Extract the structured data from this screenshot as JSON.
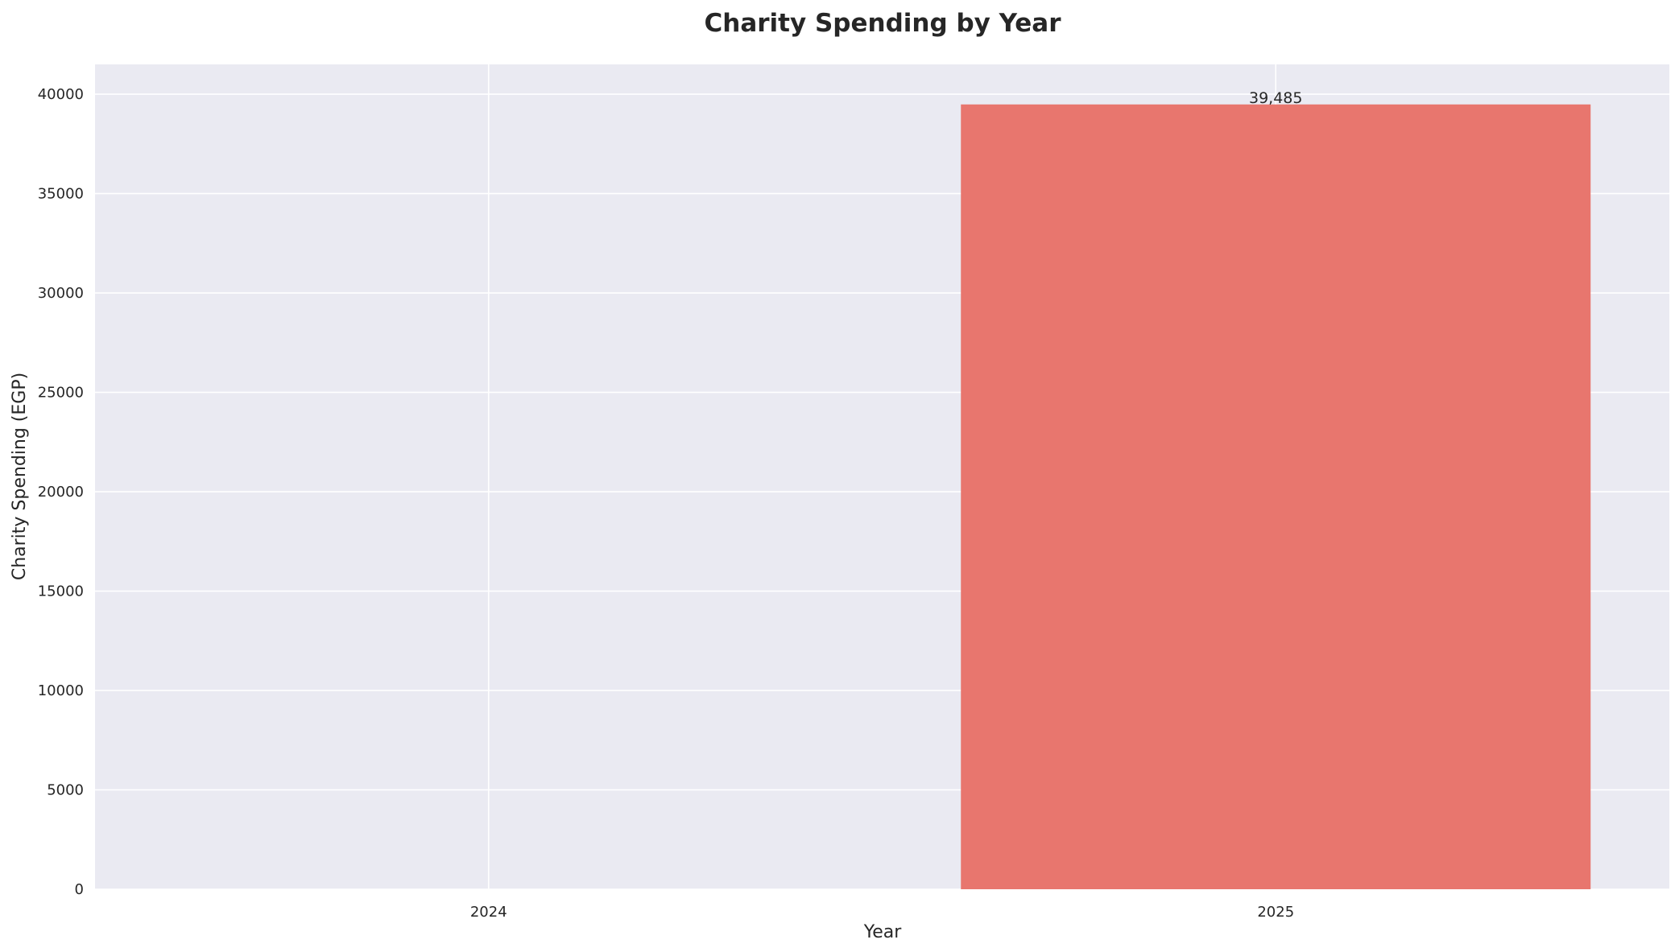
{
  "chart_data": {
    "type": "bar",
    "title": "Charity Spending by Year",
    "xlabel": "Year",
    "ylabel": "Charity Spending (EGP)",
    "categories": [
      "2024",
      "2025"
    ],
    "values": [
      0,
      39485
    ],
    "data_labels": [
      "",
      "39,485"
    ],
    "ylim": [
      0,
      41500
    ],
    "yticks": [
      0,
      5000,
      10000,
      15000,
      20000,
      25000,
      30000,
      35000,
      40000
    ],
    "ytick_labels": [
      "0",
      "5000",
      "10000",
      "15000",
      "20000",
      "25000",
      "30000",
      "35000",
      "40000"
    ],
    "grid": true,
    "legend": false,
    "bar_color": "#e8766e",
    "plot_background": "#eaeaf2",
    "grid_color": "#ffffff"
  }
}
